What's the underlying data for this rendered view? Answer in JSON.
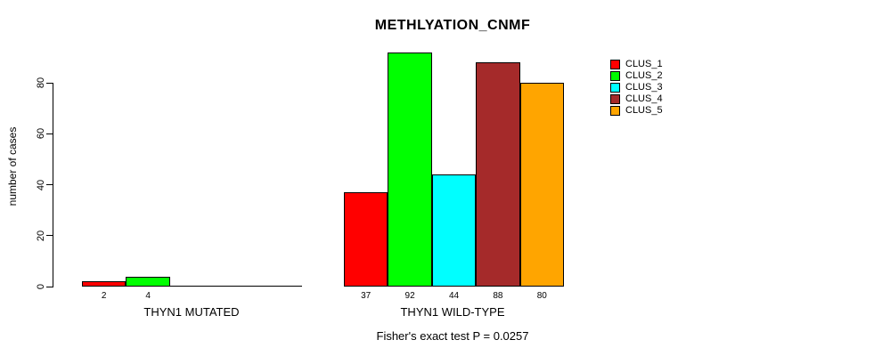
{
  "title": "METHLYATION_CNMF",
  "footer": "Fisher's exact test P = 0.0257",
  "chart_data": {
    "type": "bar",
    "title": "METHLYATION_CNMF",
    "xlabel": "",
    "ylabel": "number of cases",
    "ylim": [
      0,
      92
    ],
    "yticks": [
      0,
      20,
      40,
      60,
      80
    ],
    "grid": false,
    "legend_position": "top-right",
    "bar_value_labels": true,
    "series": [
      {
        "name": "CLUS_1",
        "color": "#FF0000"
      },
      {
        "name": "CLUS_2",
        "color": "#00FF00"
      },
      {
        "name": "CLUS_3",
        "color": "#00FFFF"
      },
      {
        "name": "CLUS_4",
        "color": "#A52A2A"
      },
      {
        "name": "CLUS_5",
        "color": "#FFA500"
      }
    ],
    "categories": [
      "THYN1 MUTATED",
      "THYN1 WILD-TYPE"
    ],
    "groups": [
      {
        "label": "THYN1 MUTATED",
        "values": [
          2,
          4,
          0,
          0,
          0
        ]
      },
      {
        "label": "THYN1 WILD-TYPE",
        "values": [
          37,
          92,
          44,
          88,
          80
        ]
      }
    ],
    "annotation": "Fisher's exact test P = 0.0257"
  }
}
